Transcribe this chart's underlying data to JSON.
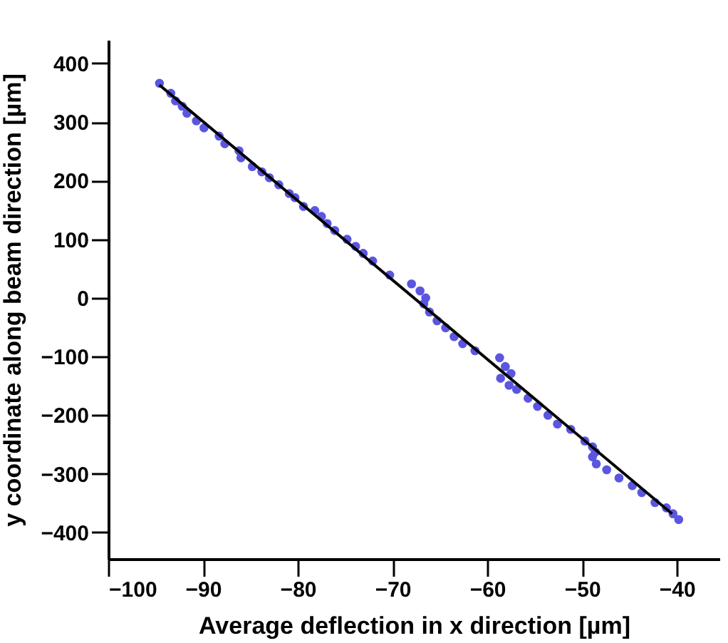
{
  "chart_data": {
    "type": "scatter",
    "xlabel": "Average deflection in x direction [µm]",
    "ylabel": "y coordinate along beam direction [µm]",
    "xlim": [
      -100,
      -35.5
    ],
    "xticks": [
      -100,
      -90,
      -80,
      -70,
      -60,
      -50,
      -40
    ],
    "ylim": [
      -445,
      440
    ],
    "yticks": [
      -400,
      -300,
      -200,
      -100,
      0,
      100,
      200,
      300,
      400
    ],
    "grid": false,
    "legend": false,
    "series": [
      {
        "type": "scatter",
        "color": "#5a56e0",
        "marker": "circle",
        "x": [
          -94.6,
          -93.4,
          -92.9,
          -92.2,
          -91.7,
          -90.7,
          -89.9,
          -88.3,
          -87.7,
          -86.2,
          -86.0,
          -84.8,
          -83.8,
          -83.0,
          -82.0,
          -80.9,
          -80.3,
          -79.4,
          -78.2,
          -77.5,
          -76.9,
          -76.1,
          -74.8,
          -73.9,
          -73.1,
          -72.1,
          -70.3,
          -68.0,
          -67.1,
          -66.5,
          -66.7,
          -66.1,
          -65.3,
          -64.4,
          -63.5,
          -62.6,
          -61.3,
          -58.7,
          -58.1,
          -57.5,
          -58.6,
          -57.7,
          -56.9,
          -55.7,
          -54.7,
          -53.6,
          -52.6,
          -51.2,
          -49.7,
          -48.9,
          -48.6,
          -48.9,
          -48.5,
          -47.4,
          -46.1,
          -44.7,
          -43.7,
          -42.3,
          -41.1,
          -40.4,
          -39.8
        ],
        "values": [
          366,
          349,
          336,
          327,
          315,
          302,
          290,
          276,
          263,
          251,
          239,
          224,
          215,
          205,
          193,
          178,
          171,
          156,
          149,
          139,
          127,
          115,
          100,
          88,
          76,
          63,
          39,
          24,
          12,
          0,
          -10,
          -24,
          -39,
          -51,
          -66,
          -78,
          -90,
          -102,
          -117,
          -129,
          -137,
          -149,
          -156,
          -171,
          -185,
          -200,
          -215,
          -224,
          -244,
          -254,
          -263,
          -271,
          -283,
          -293,
          -307,
          -320,
          -332,
          -349,
          -358,
          -368,
          -378
        ]
      },
      {
        "type": "line",
        "color": "#000000",
        "marker": "none",
        "line_style": "solid",
        "x": [
          -94.6,
          -40.5
        ],
        "values": [
          363,
          -368
        ]
      }
    ]
  }
}
